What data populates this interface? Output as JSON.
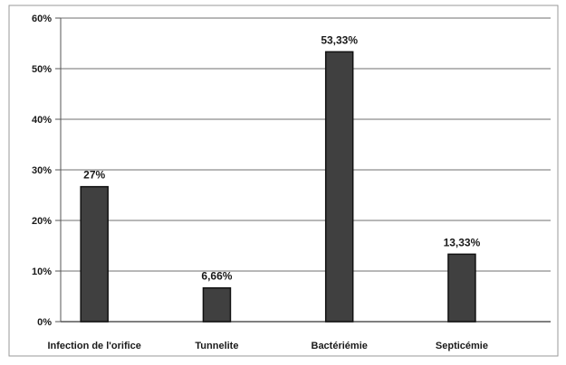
{
  "chart_data": {
    "type": "bar",
    "categories": [
      "Infection de l'orifice",
      "Tunnelite",
      "Bactériémie",
      "Septicémie"
    ],
    "values": [
      26.67,
      6.66,
      53.33,
      13.33
    ],
    "data_labels": [
      "27%",
      "6,66%",
      "53,33%",
      "13,33%"
    ],
    "y_ticks": [
      {
        "value": 0,
        "label": "0%"
      },
      {
        "value": 10,
        "label": "10%"
      },
      {
        "value": 20,
        "label": "20%"
      },
      {
        "value": 30,
        "label": "30%"
      },
      {
        "value": 40,
        "label": "40%"
      },
      {
        "value": 50,
        "label": "50%"
      },
      {
        "value": 60,
        "label": "60%"
      }
    ],
    "ylim": [
      0,
      60
    ],
    "title": "",
    "xlabel": "",
    "ylabel": "",
    "grid": true,
    "legend": "none",
    "colors": {
      "bar": "#404040",
      "bar_edge": "#111111",
      "grid": "#8c8c8c",
      "axis": "#555555",
      "text": "#1a1a1a"
    }
  }
}
